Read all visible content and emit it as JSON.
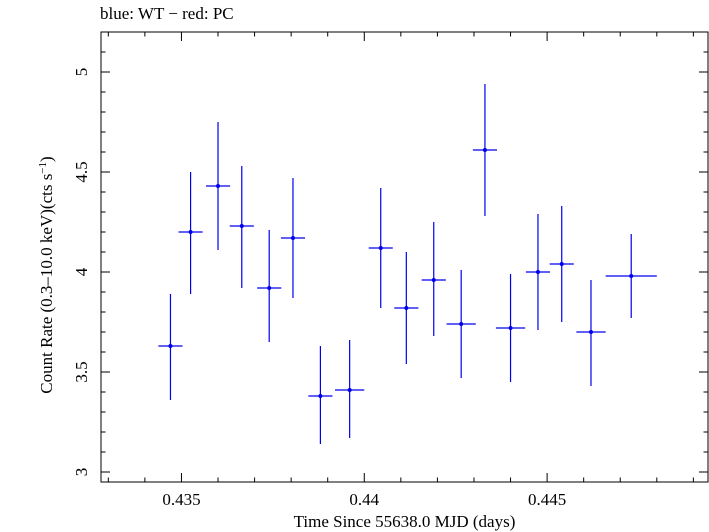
{
  "chart_data": {
    "type": "scatter",
    "annotation": "blue: WT − red: PC",
    "xlabel": "Time Since 55638.0 MJD (days)",
    "ylabel_main": "Count Rate (0.3–10.0 keV)(cts s",
    "ylabel_sup": "−1",
    "ylabel_close": ")",
    "xlim": [
      0.4328,
      0.4494
    ],
    "ylim": [
      2.95,
      5.2
    ],
    "xticks": [
      0.435,
      0.44,
      0.445
    ],
    "xtick_labels": [
      "0.435",
      "0.44",
      "0.445"
    ],
    "yticks": [
      3,
      3.5,
      4,
      4.5,
      5
    ],
    "ytick_labels": [
      "3",
      "3.5",
      "4",
      "4.5",
      "5"
    ],
    "grid": false,
    "color": "#0000ee",
    "series": [
      {
        "points": [
          {
            "x": 0.4347,
            "xerr": 0.00033,
            "y": 3.63,
            "ylo": 3.36,
            "yhi": 3.89
          },
          {
            "x": 0.43525,
            "xerr": 0.00033,
            "y": 4.2,
            "ylo": 3.89,
            "yhi": 4.5
          },
          {
            "x": 0.436,
            "xerr": 0.00033,
            "y": 4.43,
            "ylo": 4.11,
            "yhi": 4.75
          },
          {
            "x": 0.43665,
            "xerr": 0.00033,
            "y": 4.23,
            "ylo": 3.92,
            "yhi": 4.53
          },
          {
            "x": 0.4374,
            "xerr": 0.00033,
            "y": 3.92,
            "ylo": 3.65,
            "yhi": 4.21
          },
          {
            "x": 0.43805,
            "xerr": 0.00033,
            "y": 4.17,
            "ylo": 3.87,
            "yhi": 4.47
          },
          {
            "x": 0.4388,
            "xerr": 0.00033,
            "y": 3.38,
            "ylo": 3.14,
            "yhi": 3.63
          },
          {
            "x": 0.4396,
            "xerr": 0.0004,
            "y": 3.41,
            "ylo": 3.17,
            "yhi": 3.66
          },
          {
            "x": 0.44045,
            "xerr": 0.00033,
            "y": 4.12,
            "ylo": 3.82,
            "yhi": 4.42
          },
          {
            "x": 0.44115,
            "xerr": 0.00033,
            "y": 3.82,
            "ylo": 3.54,
            "yhi": 4.1
          },
          {
            "x": 0.4419,
            "xerr": 0.00033,
            "y": 3.96,
            "ylo": 3.68,
            "yhi": 4.25
          },
          {
            "x": 0.44265,
            "xerr": 0.0004,
            "y": 3.74,
            "ylo": 3.47,
            "yhi": 4.01
          },
          {
            "x": 0.4433,
            "xerr": 0.00033,
            "y": 4.61,
            "ylo": 4.28,
            "yhi": 4.94
          },
          {
            "x": 0.444,
            "xerr": 0.0004,
            "y": 3.72,
            "ylo": 3.45,
            "yhi": 3.99
          },
          {
            "x": 0.44475,
            "xerr": 0.00033,
            "y": 4.0,
            "ylo": 3.71,
            "yhi": 4.29
          },
          {
            "x": 0.4454,
            "xerr": 0.00033,
            "y": 4.04,
            "ylo": 3.75,
            "yhi": 4.33
          },
          {
            "x": 0.4462,
            "xerr": 0.0004,
            "y": 3.7,
            "ylo": 3.43,
            "yhi": 3.96
          },
          {
            "x": 0.4473,
            "xerr": 0.0007,
            "y": 3.98,
            "ylo": 3.77,
            "yhi": 4.19
          }
        ]
      }
    ]
  }
}
